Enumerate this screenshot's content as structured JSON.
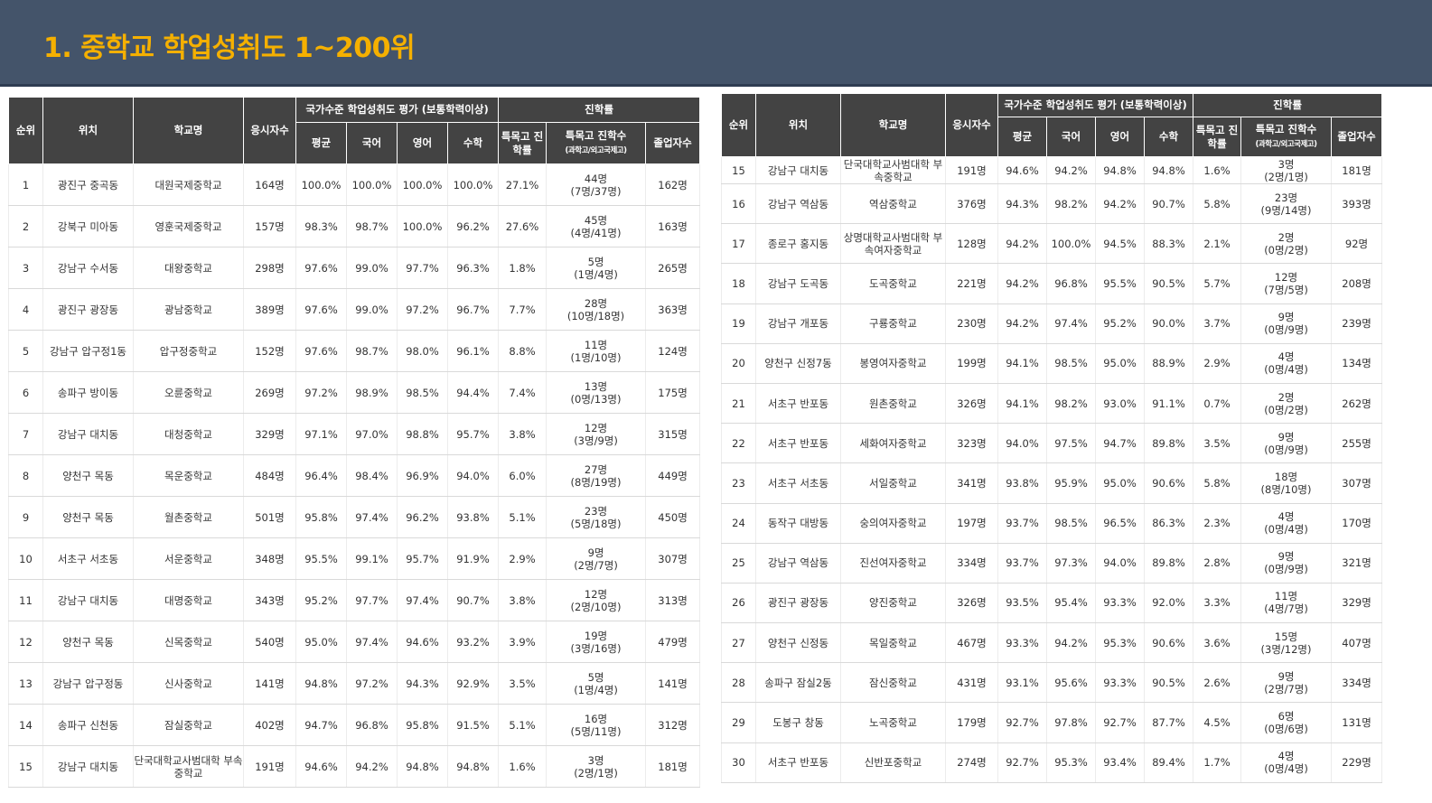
{
  "page_title": "1. 중학교 학업성취도 1~200위",
  "headers": {
    "rank": "순위",
    "location": "위치",
    "school": "학교명",
    "examinees": "응시자수",
    "national_group": "국가수준 학업성취도 평가 (보통학력이상)",
    "avg": "평균",
    "korean": "국어",
    "english": "영어",
    "math": "수학",
    "advancement_group": "진학률",
    "special_rate": "특목고 진학률",
    "special_count": "특목고 진학수",
    "special_count_sub": "(과학고/외고국제고)",
    "graduates": "졸업자수"
  },
  "rows": [
    {
      "rank": "1",
      "loc": "광진구 중곡동",
      "school": "대원국제중학교",
      "exam": "164명",
      "avg": "100.0%",
      "kor": "100.0%",
      "eng": "100.0%",
      "math": "100.0%",
      "rate": "27.1%",
      "cnt": "44명",
      "cnt_sub": "(7명/37명)",
      "grad": "162명"
    },
    {
      "rank": "2",
      "loc": "강북구 미아동",
      "school": "영훈국제중학교",
      "exam": "157명",
      "avg": "98.3%",
      "kor": "98.7%",
      "eng": "100.0%",
      "math": "96.2%",
      "rate": "27.6%",
      "cnt": "45명",
      "cnt_sub": "(4명/41명)",
      "grad": "163명"
    },
    {
      "rank": "3",
      "loc": "강남구 수서동",
      "school": "대왕중학교",
      "exam": "298명",
      "avg": "97.6%",
      "kor": "99.0%",
      "eng": "97.7%",
      "math": "96.3%",
      "rate": "1.8%",
      "cnt": "5명",
      "cnt_sub": "(1명/4명)",
      "grad": "265명"
    },
    {
      "rank": "4",
      "loc": "광진구 광장동",
      "school": "광남중학교",
      "exam": "389명",
      "avg": "97.6%",
      "kor": "99.0%",
      "eng": "97.2%",
      "math": "96.7%",
      "rate": "7.7%",
      "cnt": "28명",
      "cnt_sub": "(10명/18명)",
      "grad": "363명"
    },
    {
      "rank": "5",
      "loc": "강남구 압구정1동",
      "school": "압구정중학교",
      "exam": "152명",
      "avg": "97.6%",
      "kor": "98.7%",
      "eng": "98.0%",
      "math": "96.1%",
      "rate": "8.8%",
      "cnt": "11명",
      "cnt_sub": "(1명/10명)",
      "grad": "124명"
    },
    {
      "rank": "6",
      "loc": "송파구 방이동",
      "school": "오륜중학교",
      "exam": "269명",
      "avg": "97.2%",
      "kor": "98.9%",
      "eng": "98.5%",
      "math": "94.4%",
      "rate": "7.4%",
      "cnt": "13명",
      "cnt_sub": "(0명/13명)",
      "grad": "175명"
    },
    {
      "rank": "7",
      "loc": "강남구 대치동",
      "school": "대청중학교",
      "exam": "329명",
      "avg": "97.1%",
      "kor": "97.0%",
      "eng": "98.8%",
      "math": "95.7%",
      "rate": "3.8%",
      "cnt": "12명",
      "cnt_sub": "(3명/9명)",
      "grad": "315명"
    },
    {
      "rank": "8",
      "loc": "양천구 목동",
      "school": "목운중학교",
      "exam": "484명",
      "avg": "96.4%",
      "kor": "98.4%",
      "eng": "96.9%",
      "math": "94.0%",
      "rate": "6.0%",
      "cnt": "27명",
      "cnt_sub": "(8명/19명)",
      "grad": "449명"
    },
    {
      "rank": "9",
      "loc": "양천구 목동",
      "school": "월촌중학교",
      "exam": "501명",
      "avg": "95.8%",
      "kor": "97.4%",
      "eng": "96.2%",
      "math": "93.8%",
      "rate": "5.1%",
      "cnt": "23명",
      "cnt_sub": "(5명/18명)",
      "grad": "450명"
    },
    {
      "rank": "10",
      "loc": "서초구 서초동",
      "school": "서운중학교",
      "exam": "348명",
      "avg": "95.5%",
      "kor": "99.1%",
      "eng": "95.7%",
      "math": "91.9%",
      "rate": "2.9%",
      "cnt": "9명",
      "cnt_sub": "(2명/7명)",
      "grad": "307명"
    },
    {
      "rank": "11",
      "loc": "강남구 대치동",
      "school": "대명중학교",
      "exam": "343명",
      "avg": "95.2%",
      "kor": "97.7%",
      "eng": "97.4%",
      "math": "90.7%",
      "rate": "3.8%",
      "cnt": "12명",
      "cnt_sub": "(2명/10명)",
      "grad": "313명"
    },
    {
      "rank": "12",
      "loc": "양천구 목동",
      "school": "신목중학교",
      "exam": "540명",
      "avg": "95.0%",
      "kor": "97.4%",
      "eng": "94.6%",
      "math": "93.2%",
      "rate": "3.9%",
      "cnt": "19명",
      "cnt_sub": "(3명/16명)",
      "grad": "479명"
    },
    {
      "rank": "13",
      "loc": "강남구 압구정동",
      "school": "신사중학교",
      "exam": "141명",
      "avg": "94.8%",
      "kor": "97.2%",
      "eng": "94.3%",
      "math": "92.9%",
      "rate": "3.5%",
      "cnt": "5명",
      "cnt_sub": "(1명/4명)",
      "grad": "141명"
    },
    {
      "rank": "14",
      "loc": "송파구 신천동",
      "school": "잠실중학교",
      "exam": "402명",
      "avg": "94.7%",
      "kor": "96.8%",
      "eng": "95.8%",
      "math": "91.5%",
      "rate": "5.1%",
      "cnt": "16명",
      "cnt_sub": "(5명/11명)",
      "grad": "312명"
    },
    {
      "rank": "15",
      "loc": "강남구 대치동",
      "school": "단국대학교사범대학 부속중학교",
      "exam": "191명",
      "avg": "94.6%",
      "kor": "94.2%",
      "eng": "94.8%",
      "math": "94.8%",
      "rate": "1.6%",
      "cnt": "3명",
      "cnt_sub": "(2명/1명)",
      "grad": "181명"
    }
  ],
  "rows2": [
    {
      "rank": "15",
      "loc": "강남구 대치동",
      "school": "단국대학교사범대학 부속중학교",
      "exam": "191명",
      "avg": "94.6%",
      "kor": "94.2%",
      "eng": "94.8%",
      "math": "94.8%",
      "rate": "1.6%",
      "cnt": "3명",
      "cnt_sub": "(2명/1명)",
      "grad": "181명"
    },
    {
      "rank": "16",
      "loc": "강남구 역삼동",
      "school": "역삼중학교",
      "exam": "376명",
      "avg": "94.3%",
      "kor": "98.2%",
      "eng": "94.2%",
      "math": "90.7%",
      "rate": "5.8%",
      "cnt": "23명",
      "cnt_sub": "(9명/14명)",
      "grad": "393명"
    },
    {
      "rank": "17",
      "loc": "종로구 홍지동",
      "school": "상명대학교사범대학 부속여자중학교",
      "exam": "128명",
      "avg": "94.2%",
      "kor": "100.0%",
      "eng": "94.5%",
      "math": "88.3%",
      "rate": "2.1%",
      "cnt": "2명",
      "cnt_sub": "(0명/2명)",
      "grad": "92명"
    },
    {
      "rank": "18",
      "loc": "강남구 도곡동",
      "school": "도곡중학교",
      "exam": "221명",
      "avg": "94.2%",
      "kor": "96.8%",
      "eng": "95.5%",
      "math": "90.5%",
      "rate": "5.7%",
      "cnt": "12명",
      "cnt_sub": "(7명/5명)",
      "grad": "208명"
    },
    {
      "rank": "19",
      "loc": "강남구 개포동",
      "school": "구룡중학교",
      "exam": "230명",
      "avg": "94.2%",
      "kor": "97.4%",
      "eng": "95.2%",
      "math": "90.0%",
      "rate": "3.7%",
      "cnt": "9명",
      "cnt_sub": "(0명/9명)",
      "grad": "239명"
    },
    {
      "rank": "20",
      "loc": "양천구 신정7동",
      "school": "봉영여자중학교",
      "exam": "199명",
      "avg": "94.1%",
      "kor": "98.5%",
      "eng": "95.0%",
      "math": "88.9%",
      "rate": "2.9%",
      "cnt": "4명",
      "cnt_sub": "(0명/4명)",
      "grad": "134명"
    },
    {
      "rank": "21",
      "loc": "서초구 반포동",
      "school": "원촌중학교",
      "exam": "326명",
      "avg": "94.1%",
      "kor": "98.2%",
      "eng": "93.0%",
      "math": "91.1%",
      "rate": "0.7%",
      "cnt": "2명",
      "cnt_sub": "(0명/2명)",
      "grad": "262명"
    },
    {
      "rank": "22",
      "loc": "서초구 반포동",
      "school": "세화여자중학교",
      "exam": "323명",
      "avg": "94.0%",
      "kor": "97.5%",
      "eng": "94.7%",
      "math": "89.8%",
      "rate": "3.5%",
      "cnt": "9명",
      "cnt_sub": "(0명/9명)",
      "grad": "255명"
    },
    {
      "rank": "23",
      "loc": "서초구 서초동",
      "school": "서일중학교",
      "exam": "341명",
      "avg": "93.8%",
      "kor": "95.9%",
      "eng": "95.0%",
      "math": "90.6%",
      "rate": "5.8%",
      "cnt": "18명",
      "cnt_sub": "(8명/10명)",
      "grad": "307명"
    },
    {
      "rank": "24",
      "loc": "동작구 대방동",
      "school": "숭의여자중학교",
      "exam": "197명",
      "avg": "93.7%",
      "kor": "98.5%",
      "eng": "96.5%",
      "math": "86.3%",
      "rate": "2.3%",
      "cnt": "4명",
      "cnt_sub": "(0명/4명)",
      "grad": "170명"
    },
    {
      "rank": "25",
      "loc": "강남구 역삼동",
      "school": "진선여자중학교",
      "exam": "334명",
      "avg": "93.7%",
      "kor": "97.3%",
      "eng": "94.0%",
      "math": "89.8%",
      "rate": "2.8%",
      "cnt": "9명",
      "cnt_sub": "(0명/9명)",
      "grad": "321명"
    },
    {
      "rank": "26",
      "loc": "광진구 광장동",
      "school": "양진중학교",
      "exam": "326명",
      "avg": "93.5%",
      "kor": "95.4%",
      "eng": "93.3%",
      "math": "92.0%",
      "rate": "3.3%",
      "cnt": "11명",
      "cnt_sub": "(4명/7명)",
      "grad": "329명"
    },
    {
      "rank": "27",
      "loc": "양천구 신정동",
      "school": "목일중학교",
      "exam": "467명",
      "avg": "93.3%",
      "kor": "94.2%",
      "eng": "95.3%",
      "math": "90.6%",
      "rate": "3.6%",
      "cnt": "15명",
      "cnt_sub": "(3명/12명)",
      "grad": "407명"
    },
    {
      "rank": "28",
      "loc": "송파구 잠실2동",
      "school": "잠신중학교",
      "exam": "431명",
      "avg": "93.1%",
      "kor": "95.6%",
      "eng": "93.3%",
      "math": "90.5%",
      "rate": "2.6%",
      "cnt": "9명",
      "cnt_sub": "(2명/7명)",
      "grad": "334명"
    },
    {
      "rank": "29",
      "loc": "도봉구 창동",
      "school": "노곡중학교",
      "exam": "179명",
      "avg": "92.7%",
      "kor": "97.8%",
      "eng": "92.7%",
      "math": "87.7%",
      "rate": "4.5%",
      "cnt": "6명",
      "cnt_sub": "(0명/6명)",
      "grad": "131명"
    },
    {
      "rank": "30",
      "loc": "서초구 반포동",
      "school": "신반포중학교",
      "exam": "274명",
      "avg": "92.7%",
      "kor": "95.3%",
      "eng": "93.4%",
      "math": "89.4%",
      "rate": "1.7%",
      "cnt": "4명",
      "cnt_sub": "(0명/4명)",
      "grad": "229명"
    }
  ]
}
